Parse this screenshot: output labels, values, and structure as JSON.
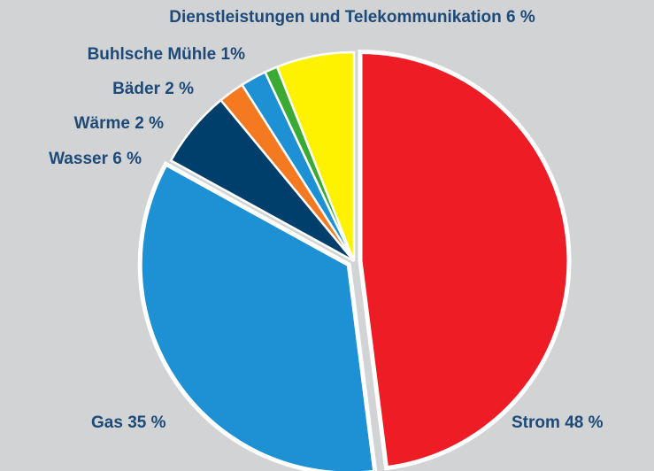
{
  "chart_data": {
    "type": "pie",
    "categories": [
      "Strom",
      "Gas",
      "Wasser",
      "Wärme",
      "Bäder",
      "Buhlsche Mühle",
      "Dienstleistungen und Telekommunikation"
    ],
    "values": [
      48,
      35,
      6,
      2,
      2,
      1,
      6
    ],
    "value_labels": [
      "48 %",
      "35 %",
      "6 %",
      "2 %",
      "2 %",
      "1%",
      "6 %"
    ],
    "colors": [
      "#ee1c25",
      "#1e90d4",
      "#003f6b",
      "#f47920",
      "#1e90d4",
      "#3aaa35",
      "#fff200"
    ]
  }
}
